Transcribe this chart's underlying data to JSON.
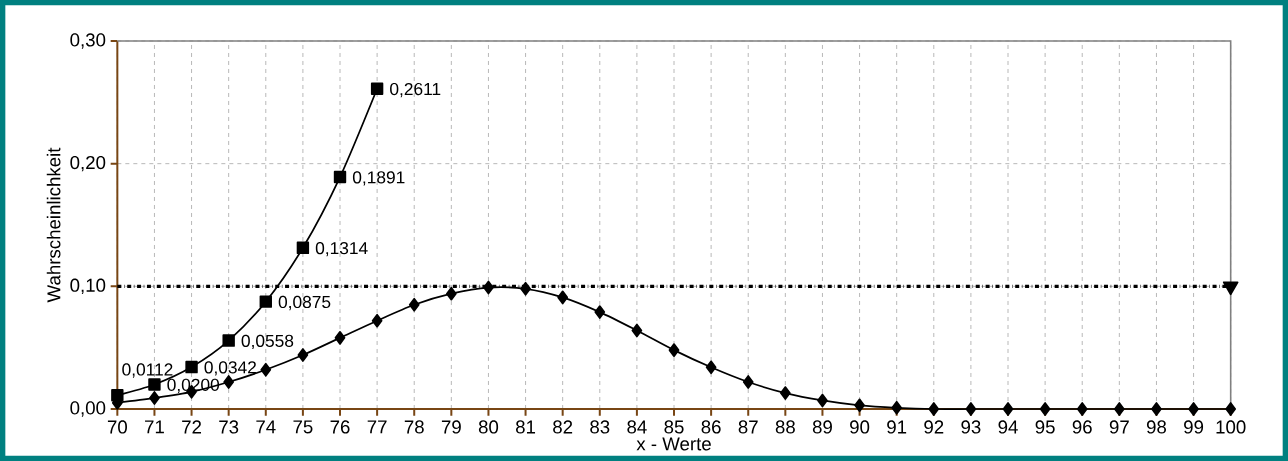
{
  "chart_data": {
    "type": "line",
    "xlabel": "x - Werte",
    "ylabel": "Wahrscheinlichkeit",
    "xlim": [
      70,
      100
    ],
    "xticks": [
      70,
      71,
      72,
      73,
      74,
      75,
      76,
      77,
      78,
      79,
      80,
      81,
      82,
      83,
      84,
      85,
      86,
      87,
      88,
      89,
      90,
      91,
      92,
      93,
      94,
      95,
      96,
      97,
      98,
      99,
      100
    ],
    "ylim": [
      0,
      0.3
    ],
    "yticks": [
      {
        "value": 0,
        "label": "0,00"
      },
      {
        "value": 0.1,
        "label": "0,10"
      },
      {
        "value": 0.2,
        "label": "0,20"
      },
      {
        "value": 0.3,
        "label": "0,30"
      }
    ],
    "grid": true,
    "series": [
      {
        "color": "#000000",
        "marker": "square",
        "x": [
          70,
          71,
          72,
          73,
          74,
          75,
          76,
          77
        ],
        "values": [
          0.0112,
          0.02,
          0.0342,
          0.0558,
          0.0875,
          0.1314,
          0.1891,
          0.2611
        ],
        "value_labels": [
          "0,0112",
          "0,0200",
          "0,0342",
          "0,0558",
          "0,0875",
          "0,1314",
          "0,1891",
          "0,2611"
        ]
      },
      {
        "color": "#000000",
        "marker": "diamond",
        "x": [
          70,
          71,
          72,
          73,
          74,
          75,
          76,
          77,
          78,
          79,
          80,
          81,
          82,
          83,
          84,
          85,
          86,
          87,
          88,
          89,
          90,
          91,
          92,
          93,
          94,
          95,
          96,
          97,
          98,
          99,
          100
        ],
        "values": [
          0.005,
          0.009,
          0.014,
          0.022,
          0.032,
          0.044,
          0.058,
          0.072,
          0.085,
          0.094,
          0.099,
          0.098,
          0.091,
          0.079,
          0.064,
          0.048,
          0.034,
          0.022,
          0.013,
          0.007,
          0.003,
          0.001,
          0,
          0,
          0,
          0,
          0,
          0,
          0,
          0,
          0
        ]
      },
      {
        "type": "scatter",
        "color": "#000000",
        "marker": "triangle",
        "x": [
          100
        ],
        "values": [
          0.1
        ]
      }
    ],
    "ref_lines": [
      {
        "axis": "y",
        "value": 0.1,
        "color": "#000000",
        "line_style": "dashed"
      }
    ]
  }
}
